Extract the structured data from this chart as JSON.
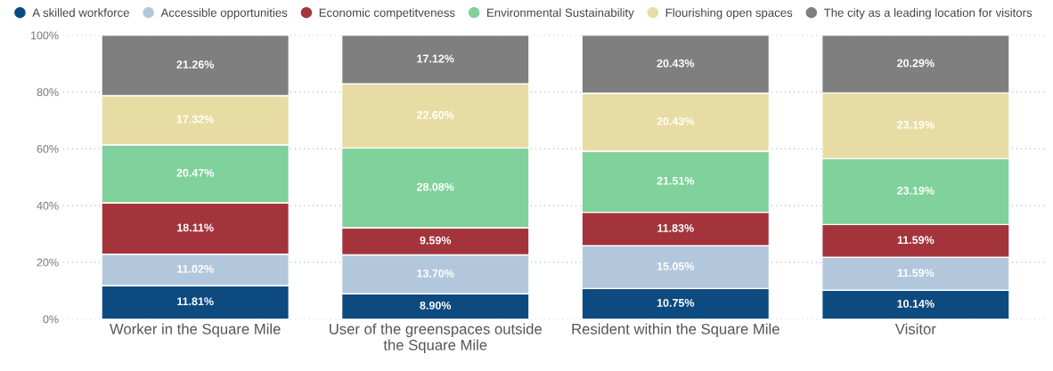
{
  "chart_data": {
    "type": "bar",
    "stacked": true,
    "categories": [
      "Worker in the Square Mile",
      "User of the greenspaces outside\nthe Square Mile",
      "Resident within the Square Mile",
      "Visitor"
    ],
    "series": [
      {
        "name": "A skilled workforce",
        "color": "#0d4a80",
        "values": [
          11.81,
          8.9,
          10.75,
          10.14
        ],
        "value_labels": [
          "11.81%",
          "8.90%",
          "10.75%",
          "10.14%"
        ]
      },
      {
        "name": "Accessible opportunities",
        "color": "#b3c7dc",
        "values": [
          11.02,
          13.7,
          15.05,
          11.59
        ],
        "value_labels": [
          "11.02%",
          "13.70%",
          "15.05%",
          "11.59%"
        ]
      },
      {
        "name": "Economic competitveness",
        "color": "#a3343c",
        "values": [
          18.11,
          9.59,
          11.83,
          11.59
        ],
        "value_labels": [
          "18.11%",
          "9.59%",
          "11.83%",
          "11.59%"
        ]
      },
      {
        "name": "Environmental Sustainability",
        "color": "#80d19b",
        "values": [
          20.47,
          28.08,
          21.51,
          23.19
        ],
        "value_labels": [
          "20.47%",
          "28.08%",
          "21.51%",
          "23.19%"
        ]
      },
      {
        "name": "Flourishing open spaces",
        "color": "#e8dca5",
        "values": [
          17.32,
          22.6,
          20.43,
          23.19
        ],
        "value_labels": [
          "17.32%",
          "22.60%",
          "20.43%",
          "23.19%"
        ]
      },
      {
        "name": "The city as a leading location for visitors",
        "color": "#7f7f7f",
        "values": [
          21.26,
          17.12,
          20.43,
          20.29
        ],
        "value_labels": [
          "21.26%",
          "17.12%",
          "20.43%",
          "20.29%"
        ]
      }
    ],
    "ylim": [
      0,
      100
    ],
    "yticks": [
      {
        "value": 0,
        "label": "0%"
      },
      {
        "value": 20,
        "label": "20%"
      },
      {
        "value": 40,
        "label": "40%"
      },
      {
        "value": 60,
        "label": "60%"
      },
      {
        "value": 80,
        "label": "80%"
      },
      {
        "value": 100,
        "label": "100%"
      }
    ],
    "grid": "y",
    "legend": "top left",
    "marker": "circle"
  }
}
